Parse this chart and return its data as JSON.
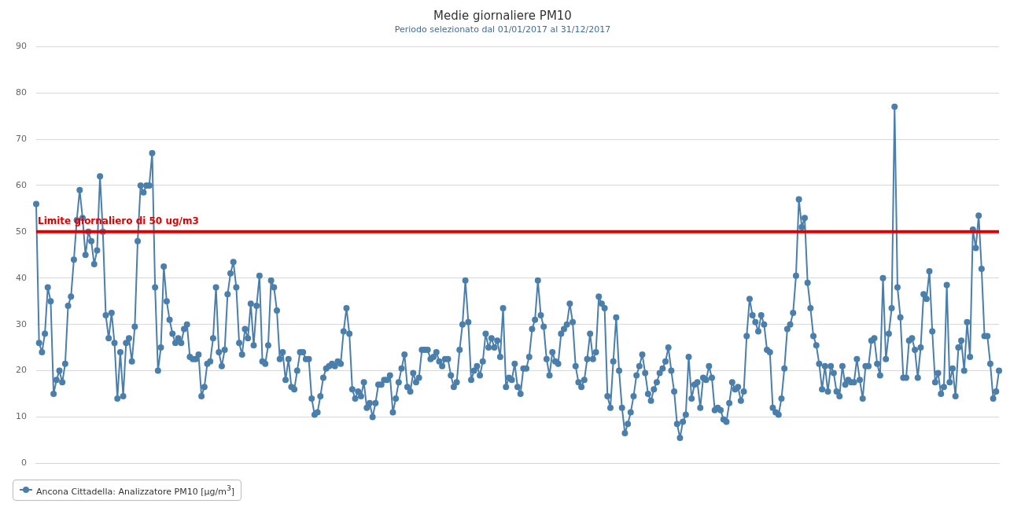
{
  "chart_data": {
    "type": "line",
    "title": "Medie giornaliere PM10",
    "subtitle": "Periodo selezionato dal 01/01/2017 al 31/12/2017",
    "categories": [
      null,
      null,
      null,
      null,
      null,
      null,
      null,
      null,
      null,
      null,
      null,
      null,
      null,
      null,
      null,
      null,
      null,
      null,
      null,
      null,
      null,
      null,
      null,
      null,
      null,
      null,
      null,
      null,
      null,
      null,
      null,
      null,
      null,
      null,
      null,
      null,
      null,
      null,
      null,
      null,
      null,
      null,
      null,
      null,
      null,
      null,
      null,
      null,
      null,
      null,
      null,
      null,
      null,
      null,
      null,
      null,
      null,
      null,
      null,
      null,
      null,
      null,
      null,
      null,
      null,
      null,
      null,
      null,
      null,
      null,
      null,
      null,
      null,
      null,
      null,
      null,
      null,
      null,
      null,
      null,
      null,
      null,
      null,
      null,
      null,
      null,
      null,
      null,
      null,
      null,
      null,
      null,
      null,
      null,
      null,
      null,
      null,
      null,
      null,
      null,
      null,
      null,
      null,
      null,
      null,
      null,
      null,
      null,
      null,
      null,
      null,
      null,
      null,
      null,
      null,
      null,
      null,
      null,
      null,
      null,
      null,
      null,
      null,
      null,
      null,
      null,
      null,
      null,
      null,
      null,
      null,
      null,
      null,
      null,
      null,
      null,
      null,
      null,
      null,
      null,
      null,
      null,
      null,
      null,
      null,
      null,
      null,
      null,
      null,
      null,
      null,
      null,
      null,
      null,
      null,
      null,
      null,
      null,
      null,
      null,
      null,
      null,
      null,
      null,
      null,
      null,
      null,
      null,
      null,
      null,
      null,
      null,
      null,
      null,
      null,
      null,
      null,
      null,
      null,
      null,
      null,
      null,
      null,
      null,
      null,
      null,
      null,
      null,
      null,
      null,
      null,
      null,
      null,
      null,
      null,
      null,
      null,
      null,
      null,
      null,
      null,
      null,
      null,
      null,
      null,
      null,
      null,
      null,
      null,
      null,
      null,
      null,
      null,
      null,
      null,
      null,
      null,
      null,
      null,
      null,
      null,
      null,
      null,
      null,
      null,
      null,
      null,
      null,
      null,
      null,
      null,
      null,
      null,
      null,
      null,
      null,
      null,
      null,
      null,
      null,
      null,
      null,
      null,
      null,
      null,
      null,
      null,
      null,
      null,
      null,
      null,
      null,
      null,
      null,
      null,
      null,
      null,
      null,
      null,
      null,
      null,
      null,
      null,
      null,
      null,
      null,
      null,
      null,
      null,
      null,
      null,
      null,
      null,
      null,
      null,
      null,
      null,
      null,
      null,
      null,
      null,
      null,
      null,
      null,
      null,
      null,
      null,
      null,
      null,
      null,
      null,
      null,
      null,
      null,
      null,
      null,
      null,
      null,
      null,
      null,
      null,
      null,
      null,
      null,
      null,
      null,
      null,
      null,
      null,
      null,
      null,
      null,
      null,
      null,
      null,
      null,
      null,
      null,
      null,
      null,
      null,
      null,
      null,
      null,
      null,
      null,
      null,
      null,
      null,
      null,
      null,
      null,
      null
    ],
    "series": [
      {
        "name": "Ancona Cittadella: Analizzatore PM10 [µg/m$^{3}$]",
        "color": "#4a7eab",
        "values": [
          56,
          26,
          24,
          28,
          38,
          35,
          15,
          18,
          20,
          17.5,
          21.5,
          34,
          36,
          44,
          52.5,
          59,
          53,
          45,
          50,
          48,
          43,
          46,
          62,
          50,
          32,
          27,
          32.5,
          26,
          14,
          24,
          14.5,
          26,
          27,
          22,
          29.5,
          48,
          60,
          58.5,
          60,
          60,
          67,
          38,
          20,
          25,
          42.5,
          35,
          31,
          28,
          26,
          27,
          26,
          29,
          30,
          23,
          22.5,
          22.5,
          23.5,
          14.5,
          16.5,
          21.5,
          22,
          27,
          38,
          24,
          21,
          24.5,
          36.5,
          41,
          43.5,
          38,
          26,
          23.5,
          29,
          27,
          34.5,
          25.5,
          34,
          40.5,
          22,
          21.5,
          25.5,
          39.5,
          38,
          33,
          22.5,
          24,
          18,
          22.5,
          16.5,
          16,
          20,
          24,
          24,
          22.5,
          22.5,
          14,
          10.5,
          11,
          14.5,
          18.5,
          20.5,
          21,
          21.5,
          21,
          22,
          21.5,
          28.5,
          33.5,
          28,
          16,
          14,
          15.5,
          14.5,
          17.5,
          12,
          13,
          10,
          13,
          17,
          17,
          18,
          18,
          19,
          11,
          14,
          17.5,
          20.5,
          23.5,
          16.5,
          15.5,
          19.5,
          17.5,
          18.5,
          24.5,
          24.5,
          24.5,
          22.5,
          23,
          24,
          22,
          21,
          22.5,
          22.5,
          19,
          16.5,
          17.5,
          24.5,
          30,
          39.5,
          30.5,
          18,
          20,
          21,
          19,
          22,
          28,
          25,
          27,
          25,
          26.5,
          23,
          33.5,
          16.5,
          18.5,
          18,
          21.5,
          16.5,
          15,
          20.5,
          20.5,
          23,
          29,
          31,
          39.5,
          32,
          29.5,
          22.5,
          19,
          24,
          22,
          21.5,
          28,
          29,
          30,
          34.5,
          30.5,
          21,
          17.5,
          16.5,
          18,
          22.5,
          28,
          22.5,
          24,
          36,
          34.5,
          33.5,
          14.5,
          12,
          22,
          31.5,
          20,
          12,
          6.5,
          8.5,
          11,
          14.5,
          19,
          21,
          23.5,
          19.5,
          15,
          13.5,
          16,
          17.5,
          19.5,
          20.5,
          22,
          25,
          20,
          15.5,
          8.5,
          5.5,
          9,
          10.5,
          23,
          14,
          17,
          17.5,
          12,
          18.5,
          18,
          21,
          18.5,
          11.5,
          12,
          11.5,
          9.5,
          9,
          13,
          17.5,
          16,
          16.5,
          13.5,
          15.5,
          27.5,
          35.5,
          32,
          30.5,
          28.5,
          32,
          30,
          24.5,
          24,
          12,
          11,
          10.5,
          14,
          20.5,
          29,
          30,
          32.5,
          40.5,
          57,
          51,
          53,
          39,
          33.5,
          27.5,
          25.5,
          21.5,
          16,
          21,
          15.5,
          21,
          19.5,
          15.5,
          14.5,
          21,
          17,
          18,
          17.5,
          17.5,
          22.5,
          18,
          14,
          21,
          21,
          26.5,
          27,
          21.5,
          19,
          40,
          22.5,
          28,
          33.5,
          77,
          38,
          31.5,
          18.5,
          18.5,
          26.5,
          27,
          24.5,
          18.5,
          25,
          36.5,
          35.5,
          41.5,
          28.5,
          17.5,
          19.5,
          15,
          16.5,
          38.5,
          17.5,
          20.5,
          14.5,
          25,
          26.5,
          20,
          30.5,
          23,
          50.5,
          46.5,
          53.5,
          42,
          27.5,
          27.5,
          21.5,
          14,
          15.5,
          20
        ]
      }
    ],
    "ylim": [
      0,
      90
    ],
    "yticks": [
      0,
      10,
      20,
      30,
      40,
      50,
      60,
      70,
      80,
      90
    ],
    "ref_lines": [
      {
        "axis": "y",
        "value": 50,
        "label": "Limite giornaliero di 50 ug/m3",
        "color": "#e00000"
      }
    ],
    "grid": "y",
    "legend": "bottom left",
    "marker": "circle",
    "line_style": "solid",
    "tick_labels": "y"
  }
}
